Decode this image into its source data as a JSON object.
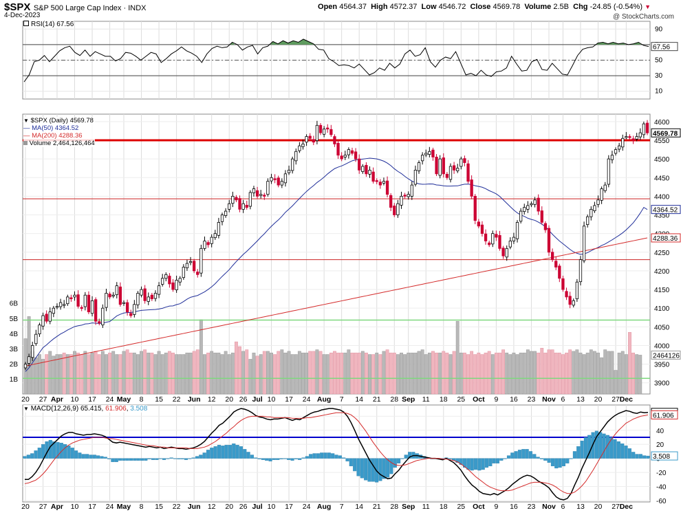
{
  "header": {
    "symbol": "$SPX",
    "name": "S&P 500 Large Cap Index",
    "exchange": "INDX",
    "date": "4-Dec-2023",
    "open_label": "Open",
    "open": "4564.37",
    "high_label": "High",
    "high": "4572.37",
    "low_label": "Low",
    "low": "4546.72",
    "close_label": "Close",
    "close": "4569.78",
    "volume_label": "Volume",
    "volume": "2.5B",
    "chg_label": "Chg",
    "chg": "-24.85 (-0.54%)",
    "chg_icon": "down-triangle-icon",
    "credit": "@ StockCharts.com"
  },
  "colors": {
    "up": "#000000",
    "down": "#cc0033",
    "ma50": "#1f2e99",
    "ma200": "#d42a2a",
    "resistance": "#dd0000",
    "support": "#7ed87e",
    "macd_line": "#000000",
    "signal_line": "#d42a2a",
    "histogram": "#3a9ac9",
    "vol_up": "#b8b8b8",
    "vol_down": "#f0b6bf",
    "rsi_fill": "#5f9c5f"
  },
  "chart_data": [
    {
      "type": "line",
      "panel": "rsi",
      "legend": "RSI(14) 67.56",
      "current": "67.56",
      "ylim": [
        0,
        100
      ],
      "ticks": [
        "10",
        "30",
        "50",
        "70",
        "90"
      ],
      "series": [
        {
          "name": "RSI(14)",
          "values": [
            22,
            31,
            48,
            50,
            56,
            48,
            55,
            62,
            66,
            68,
            60,
            56,
            63,
            55,
            61,
            58,
            55,
            55,
            49,
            52,
            60,
            59,
            55,
            50,
            55,
            60,
            58,
            47,
            52,
            58,
            62,
            67,
            62,
            59,
            55,
            47,
            58,
            65,
            68,
            66,
            67,
            73,
            70,
            63,
            67,
            69,
            58,
            66,
            68,
            74,
            71,
            75,
            72,
            75,
            73,
            77,
            74,
            71,
            64,
            63,
            52,
            48,
            43,
            44,
            43,
            40,
            45,
            38,
            31,
            34,
            40,
            37,
            46,
            40,
            45,
            58,
            63,
            55,
            57,
            66,
            48,
            41,
            50,
            54,
            52,
            61,
            46,
            31,
            33,
            30,
            37,
            31,
            29,
            35,
            36,
            40,
            55,
            45,
            36,
            37,
            48,
            51,
            38,
            37,
            46,
            39,
            32,
            31,
            43,
            56,
            64,
            66,
            67,
            72,
            73,
            71,
            73,
            71,
            72,
            70,
            71,
            73,
            69,
            67.56
          ]
        }
      ]
    },
    {
      "type": "candlestick",
      "panel": "price",
      "legend": [
        "$SPX (Daily) 4569.78",
        "MA(50) 4364.52",
        "MA(200) 4288.36",
        "Volume 2,464,126,464"
      ],
      "ylim": [
        3870,
        4620
      ],
      "y_ticks": [
        "3900",
        "3950",
        "4000",
        "4050",
        "4100",
        "4150",
        "4200",
        "4250",
        "4300",
        "4350",
        "4400",
        "4450",
        "4500",
        "4550",
        "4600"
      ],
      "vol_ticks": [
        "1B",
        "2B",
        "3B",
        "4B",
        "5B",
        "6B"
      ],
      "x_tick_labels": [
        "20",
        "27",
        "Apr",
        "10",
        "17",
        "24",
        "May",
        "8",
        "15",
        "22",
        "Jun",
        "12",
        "20",
        "26",
        "Jul",
        "10",
        "17",
        "24",
        "Aug",
        "7",
        "14",
        "21",
        "28",
        "Sep",
        "11",
        "18",
        "25",
        "Oct",
        "9",
        "16",
        "23",
        "Nov",
        "6",
        "13",
        "20",
        "27",
        "Dec"
      ],
      "x_tick_index": [
        0,
        5,
        9,
        14,
        19,
        24,
        28,
        33,
        38,
        43,
        48,
        53,
        58,
        62,
        66,
        70,
        75,
        80,
        85,
        90,
        95,
        100,
        105,
        109,
        114,
        119,
        124,
        129,
        134,
        139,
        144,
        149,
        153,
        158,
        163,
        168,
        171
      ],
      "x_bold": [
        2,
        6,
        10,
        14,
        18,
        23,
        27,
        31,
        36
      ],
      "close_values": [
        3950,
        3970,
        4000,
        4030,
        4055,
        4080,
        4065,
        4090,
        4100,
        4105,
        4115,
        4110,
        4130,
        4125,
        4135,
        4105,
        4100,
        4135,
        4090,
        4120,
        4065,
        4060,
        4100,
        4140,
        4130,
        4135,
        4160,
        4110,
        4115,
        4090,
        4080,
        4110,
        4140,
        4150,
        4120,
        4130,
        4125,
        4140,
        4160,
        4180,
        4190,
        4165,
        4150,
        4175,
        4180,
        4210,
        4220,
        4225,
        4200,
        4190,
        4260,
        4280,
        4270,
        4290,
        4300,
        4330,
        4350,
        4360,
        4380,
        4400,
        4390,
        4365,
        4380,
        4370,
        4410,
        4420,
        4400,
        4405,
        4400,
        4440,
        4450,
        4445,
        4430,
        4440,
        4460,
        4470,
        4500,
        4520,
        4535,
        4540,
        4560,
        4555,
        4545,
        4590,
        4570,
        4580,
        4580,
        4565,
        4540,
        4510,
        4500,
        4510,
        4525,
        4515,
        4500,
        4470,
        4480,
        4460,
        4470,
        4440,
        4440,
        4430,
        4440,
        4405,
        4370,
        4350,
        4380,
        4400,
        4400,
        4405,
        4430,
        4470,
        4490,
        4510,
        4515,
        4520,
        4505,
        4460,
        4500,
        4460,
        4450,
        4480,
        4470,
        4475,
        4500,
        4490,
        4440,
        4400,
        4335,
        4320,
        4300,
        4280,
        4270,
        4300,
        4290,
        4260,
        4240,
        4260,
        4280,
        4290,
        4330,
        4360,
        4370,
        4375,
        4380,
        4390,
        4360,
        4330,
        4310,
        4250,
        4230,
        4210,
        4180,
        4150,
        4130,
        4110,
        4120,
        4170,
        4230,
        4320,
        4345,
        4365,
        4375,
        4390,
        4420,
        4430,
        4500,
        4510,
        4525,
        4535,
        4555,
        4560,
        4558,
        4550,
        4560,
        4570,
        4594,
        4569.78
      ],
      "volume_billions": [
        3.5,
        4.9,
        2.7,
        2.3,
        2.5,
        2.2,
        2.5,
        2.7,
        2.4,
        2.5,
        2.5,
        2.6,
        2.5,
        2.5,
        2.7,
        2.6,
        2.5,
        2.7,
        2.5,
        2.6,
        2.7,
        2.5,
        2.7,
        2.5,
        2.6,
        2.7,
        2.5,
        2.5,
        2.7,
        2.8,
        2.6,
        2.6,
        2.5,
        2.7,
        2.8,
        2.6,
        2.6,
        2.5,
        2.7,
        2.5,
        2.6,
        2.7,
        2.6,
        2.5,
        2.5,
        2.5,
        2.6,
        2.6,
        2.7,
        2.8,
        4.7,
        2.5,
        2.6,
        2.7,
        2.6,
        2.6,
        2.5,
        2.7,
        2.5,
        2.6,
        3.3,
        3.0,
        2.7,
        2.8,
        2.2,
        2.6,
        2.4,
        2.5,
        2.7,
        2.7,
        2.6,
        2.5,
        2.7,
        2.8,
        2.6,
        2.7,
        2.5,
        2.5,
        2.7,
        2.6,
        2.6,
        2.7,
        2.7,
        2.8,
        2.7,
        2.5,
        2.5,
        2.6,
        2.7,
        2.6,
        2.6,
        2.6,
        2.8,
        2.6,
        2.6,
        2.6,
        2.7,
        2.6,
        2.5,
        2.5,
        2.6,
        2.5,
        2.7,
        2.8,
        2.6,
        2.6,
        2.5,
        2.6,
        2.5,
        2.6,
        2.6,
        2.6,
        2.7,
        2.8,
        2.5,
        2.6,
        2.7,
        2.6,
        2.6,
        2.7,
        2.6,
        2.5,
        2.7,
        4.6,
        2.6,
        2.6,
        2.5,
        2.7,
        2.5,
        2.6,
        2.5,
        2.6,
        2.7,
        2.5,
        2.6,
        2.6,
        2.8,
        2.6,
        2.5,
        2.6,
        2.5,
        2.6,
        2.6,
        2.8,
        2.7,
        2.7,
        2.6,
        2.9,
        2.6,
        2.8,
        2.8,
        2.6,
        2.6,
        2.5,
        2.6,
        2.8,
        2.7,
        2.8,
        2.6,
        2.5,
        2.6,
        2.8,
        2.7,
        2.6,
        2.3,
        2.8,
        2.7,
        2.7,
        1.5,
        2.6,
        2.7,
        2.5,
        3.9,
        2.6,
        2.5,
        2.46
      ],
      "ma50_start_end": [
        "4000",
        "4364.52"
      ],
      "ma200_start_end": [
        "3945",
        "4288.36"
      ],
      "horizontal_lines": [
        4550,
        4393,
        4230,
        4068,
        3912
      ],
      "current_price_label": "4569.78",
      "ma50_label": "4364.52",
      "ma200_label": "4288.36",
      "volume_label": "2464126"
    },
    {
      "type": "line",
      "panel": "macd",
      "legend_name": "MACD(12,26,9)",
      "legend_values": [
        "65.415",
        "61.906",
        "3.508"
      ],
      "ylim": [
        -62,
        76
      ],
      "y_ticks": [
        "-60",
        "-40",
        "-20",
        "0",
        "20",
        "40",
        "60"
      ],
      "macd_value": "65.415",
      "signal_value": "61.906",
      "hist_value": "3.508",
      "series": [
        {
          "name": "MACD",
          "values": [
            -30,
            -30,
            -26,
            -20,
            -12,
            -2,
            8,
            17,
            22,
            27,
            32,
            35,
            37,
            37,
            35,
            34,
            33,
            34,
            34,
            35,
            34,
            33,
            31,
            27,
            23,
            22,
            23,
            22,
            21,
            20,
            19,
            18,
            17,
            16,
            17,
            16,
            15,
            16,
            14,
            15,
            16,
            15,
            14,
            14,
            13,
            14,
            15,
            17,
            20,
            24,
            30,
            36,
            41,
            47,
            50,
            55,
            60,
            66,
            69,
            71,
            70,
            68,
            65,
            61,
            59,
            58,
            56,
            55,
            56,
            56,
            57,
            58,
            56,
            54,
            56,
            55,
            58,
            61,
            64,
            66,
            67,
            69,
            70,
            71,
            71,
            70,
            69,
            66,
            60,
            51,
            40,
            28,
            18,
            8,
            -2,
            -10,
            -18,
            -23,
            -26,
            -29,
            -28,
            -22,
            -17,
            -10,
            -4,
            2,
            4,
            4,
            3,
            2,
            1,
            0,
            0,
            -1,
            -2,
            0,
            -3,
            -6,
            -11,
            -17,
            -25,
            -32,
            -38,
            -42,
            -47,
            -50,
            -51,
            -52,
            -50,
            -52,
            -49,
            -46,
            -42,
            -37,
            -33,
            -29,
            -26,
            -24,
            -25,
            -28,
            -32,
            -35,
            -38,
            -42,
            -49,
            -55,
            -58,
            -59,
            -57,
            -50,
            -38,
            -27,
            -14,
            -3,
            8,
            20,
            31,
            38,
            45,
            52,
            57,
            61,
            64,
            66,
            68,
            67,
            65,
            64,
            66,
            65,
            65.415
          ]
        },
        {
          "name": "Signal",
          "values": [
            -36,
            -35,
            -33,
            -31,
            -27,
            -22,
            -16,
            -9,
            -2,
            4,
            10,
            15,
            19,
            22,
            24,
            26,
            27,
            28,
            29,
            30,
            30,
            30,
            29,
            28,
            28,
            27,
            26,
            25,
            24,
            23,
            22,
            21,
            20,
            19,
            18,
            18,
            17,
            16,
            16,
            15,
            15,
            15,
            15,
            15,
            15,
            14,
            14,
            14,
            15,
            16,
            18,
            21,
            24,
            28,
            32,
            36,
            41,
            45,
            50,
            54,
            57,
            59,
            60,
            60,
            60,
            60,
            59,
            59,
            58,
            58,
            58,
            58,
            58,
            57,
            57,
            57,
            57,
            58,
            58,
            59,
            60,
            61,
            62,
            63,
            64,
            65,
            65,
            65,
            64,
            62,
            58,
            53,
            46,
            39,
            31,
            23,
            16,
            9,
            3,
            -2,
            -6,
            -9,
            -10,
            -10,
            -9,
            -7,
            -5,
            -3,
            -2,
            -1,
            0,
            0,
            0,
            0,
            -1,
            -1,
            -2,
            -3,
            -5,
            -8,
            -12,
            -16,
            -21,
            -26,
            -30,
            -34,
            -38,
            -41,
            -43,
            -45,
            -46,
            -46,
            -46,
            -45,
            -43,
            -41,
            -39,
            -37,
            -35,
            -34,
            -34,
            -34,
            -35,
            -36,
            -38,
            -41,
            -45,
            -48,
            -50,
            -50,
            -48,
            -44,
            -39,
            -33,
            -25,
            -17,
            -8,
            1,
            10,
            19,
            27,
            34,
            40,
            45,
            50,
            53,
            56,
            58,
            60,
            61,
            61.906
          ]
        }
      ],
      "histogram_values": [
        3,
        5,
        7,
        11,
        15,
        20,
        24,
        26,
        24,
        23,
        22,
        20,
        18,
        15,
        11,
        8,
        6,
        6,
        5,
        5,
        4,
        3,
        2,
        -1,
        -5,
        -5,
        -3,
        -3,
        -3,
        -3,
        -3,
        -3,
        -3,
        -3,
        -1,
        -2,
        -2,
        0,
        -2,
        0,
        1,
        0,
        -1,
        -1,
        -2,
        0,
        1,
        3,
        5,
        8,
        12,
        15,
        17,
        19,
        18,
        19,
        19,
        21,
        19,
        17,
        13,
        9,
        5,
        1,
        -1,
        -2,
        -3,
        -4,
        -2,
        -2,
        -1,
        0,
        -2,
        -3,
        -1,
        -2,
        1,
        3,
        6,
        7,
        7,
        8,
        8,
        8,
        7,
        5,
        4,
        1,
        -4,
        -11,
        -18,
        -25,
        -28,
        -31,
        -33,
        -33,
        -34,
        -32,
        -29,
        -27,
        -22,
        -13,
        -7,
        0,
        5,
        9,
        9,
        7,
        5,
        3,
        1,
        0,
        0,
        -1,
        -1,
        1,
        -1,
        -3,
        -6,
        -9,
        -13,
        -16,
        -17,
        -16,
        -17,
        -16,
        -13,
        -11,
        -7,
        -7,
        -3,
        0,
        4,
        8,
        10,
        12,
        13,
        13,
        10,
        6,
        2,
        -1,
        -3,
        -6,
        -11,
        -14,
        -13,
        -11,
        -7,
        0,
        10,
        17,
        25,
        30,
        33,
        37,
        39,
        37,
        35,
        33,
        30,
        27,
        24,
        21,
        18,
        14,
        9,
        6,
        6,
        4,
        3.508
      ],
      "horizontal_line": 30,
      "x_tick_labels": [
        "20",
        "27",
        "Apr",
        "10",
        "17",
        "24",
        "May",
        "8",
        "15",
        "22",
        "Jun",
        "12",
        "20",
        "26",
        "Jul",
        "10",
        "17",
        "24",
        "Aug",
        "7",
        "14",
        "21",
        "28",
        "Sep",
        "11",
        "18",
        "25",
        "Oct",
        "9",
        "16",
        "23",
        "Nov",
        "6",
        "13",
        "20",
        "27",
        "Dec"
      ]
    }
  ]
}
